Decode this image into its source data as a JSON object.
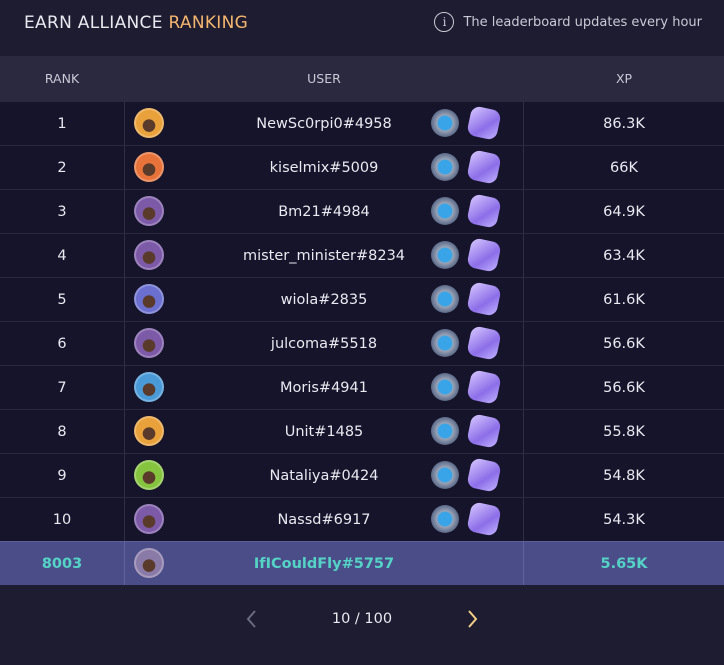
{
  "header": {
    "title": "EARN ALLIANCE",
    "title_accent": "RANKING",
    "info": "The leaderboard updates every hour"
  },
  "table": {
    "columns": [
      "RANK",
      "USER",
      "XP"
    ],
    "rows": [
      {
        "rank": "1",
        "user": "NewSc0rpi0#4958",
        "xp": "86.3K"
      },
      {
        "rank": "2",
        "user": "kiselmix#5009",
        "xp": "66K"
      },
      {
        "rank": "3",
        "user": "Bm21#4984",
        "xp": "64.9K"
      },
      {
        "rank": "4",
        "user": "mister_minister#8234",
        "xp": "63.4K"
      },
      {
        "rank": "5",
        "user": "wiola#2835",
        "xp": "61.6K"
      },
      {
        "rank": "6",
        "user": "julcoma#5518",
        "xp": "56.6K"
      },
      {
        "rank": "7",
        "user": "Moris#4941",
        "xp": "56.6K"
      },
      {
        "rank": "8",
        "user": "Unit#1485",
        "xp": "55.8K"
      },
      {
        "rank": "9",
        "user": "Nataliya#0424",
        "xp": "54.8K"
      },
      {
        "rank": "10",
        "user": "Nassd#6917",
        "xp": "54.3K"
      }
    ],
    "current_user": {
      "rank": "8003",
      "user": "IfICouldFly#5757",
      "xp": "5.65K"
    }
  },
  "pagination": {
    "label": "10 / 100"
  }
}
